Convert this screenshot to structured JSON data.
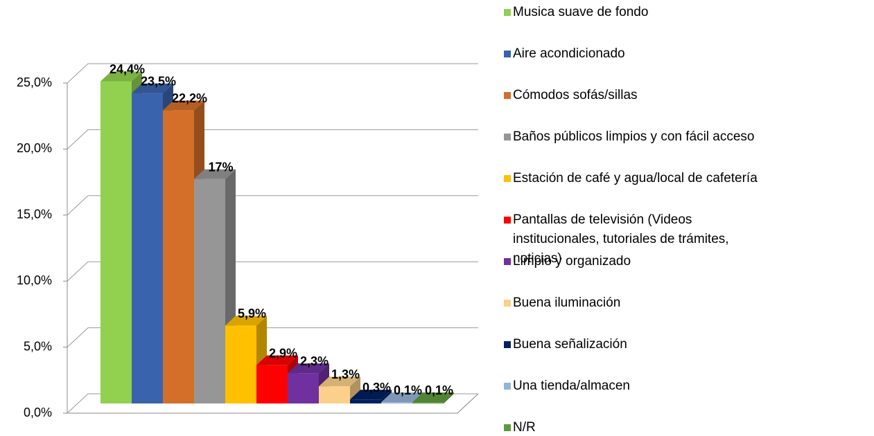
{
  "chart_data": {
    "type": "bar3d",
    "series": [
      {
        "name": "Musica suave de fondo",
        "color": "#92d050",
        "values": [
          24.4
        ],
        "value_labels": [
          "24,4%"
        ]
      },
      {
        "name": "Aire acondicionado",
        "color": "#3a63ad",
        "values": [
          23.5
        ],
        "value_labels": [
          "23,5%"
        ]
      },
      {
        "name": "Cómodos sofás/sillas",
        "color": "#d46f2a",
        "values": [
          22.2
        ],
        "value_labels": [
          "22,2%"
        ]
      },
      {
        "name": "Baños públicos limpios y con fácil acceso",
        "color": "#969696",
        "values": [
          17
        ],
        "value_labels": [
          "17%"
        ]
      },
      {
        "name": "Estación de café y agua/local de cafetería",
        "color": "#ffc000",
        "values": [
          5.9
        ],
        "value_labels": [
          "5,9%"
        ]
      },
      {
        "name": "Pantallas de televisión (Videos institucionales, tutoriales de trámites, noticias)",
        "color": "#ff0000",
        "values": [
          2.9
        ],
        "value_labels": [
          "2,9%"
        ]
      },
      {
        "name": "Limpio y organizado",
        "color": "#7030a0",
        "values": [
          2.3
        ],
        "value_labels": [
          "2,3%"
        ]
      },
      {
        "name": "Buena iluminación",
        "color": "#fcd08a",
        "values": [
          1.3
        ],
        "value_labels": [
          "1,3%"
        ]
      },
      {
        "name": "Buena señalización",
        "color": "#002060",
        "values": [
          0.3
        ],
        "value_labels": [
          "0,3%"
        ]
      },
      {
        "name": "Una tienda/almacen",
        "color": "#95b3d7",
        "values": [
          0.1
        ],
        "value_labels": [
          "0,1%"
        ]
      },
      {
        "name": "N/R",
        "color": "#5e9a3c",
        "values": [
          0.1
        ],
        "value_labels": [
          "0,1%"
        ]
      }
    ],
    "ylim": [
      0,
      25
    ],
    "yticks": [
      {
        "value": 0,
        "label": "0,0%"
      },
      {
        "value": 5,
        "label": "5,0%"
      },
      {
        "value": 10,
        "label": "10,0%"
      },
      {
        "value": 15,
        "label": "15,0%"
      },
      {
        "value": 20,
        "label": "20,0%"
      },
      {
        "value": 25,
        "label": "25,0%"
      }
    ],
    "grid": true
  }
}
